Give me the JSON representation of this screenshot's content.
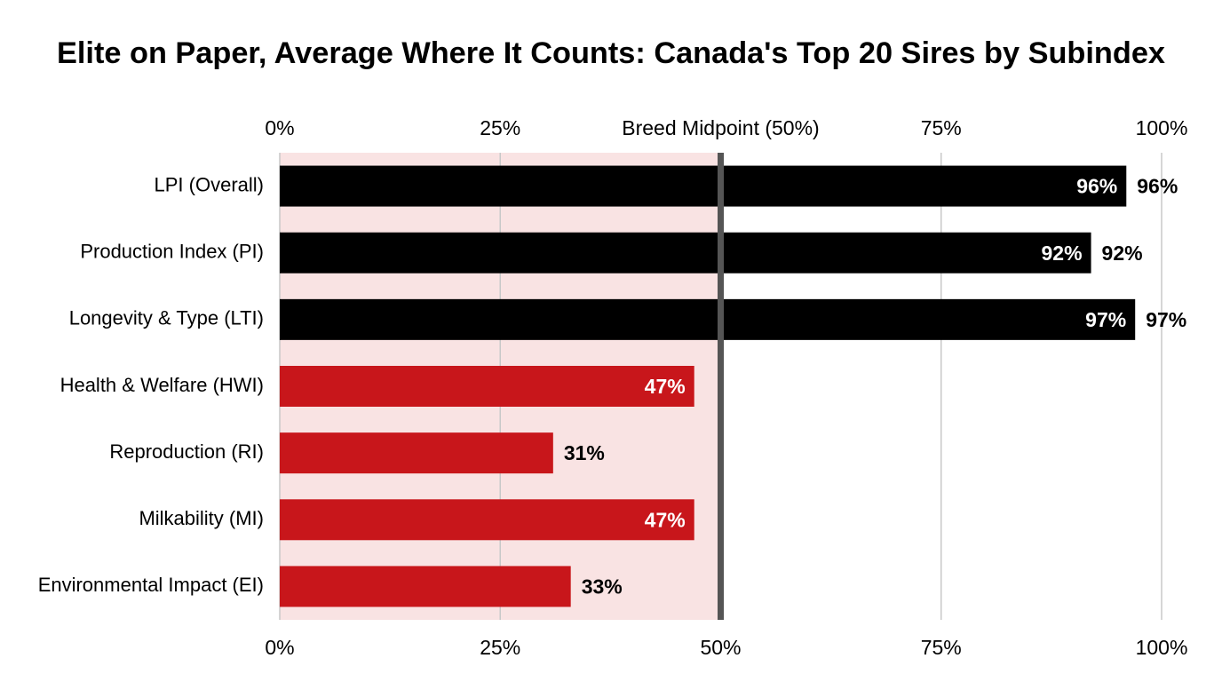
{
  "chart_data": {
    "type": "bar",
    "orientation": "horizontal",
    "title": "Elite on Paper, Average Where It Counts: Canada's Top 20 Sires by Subindex",
    "categories": [
      "LPI (Overall)",
      "Production Index (PI)",
      "Longevity & Type (LTI)",
      "Health & Welfare (HWI)",
      "Reproduction (RI)",
      "Milkability (MI)",
      "Environmental Impact (EI)"
    ],
    "values": [
      96,
      92,
      97,
      47,
      31,
      47,
      33
    ],
    "value_labels": [
      "96%",
      "92%",
      "97%",
      "47%",
      "31%",
      "47%",
      "33%"
    ],
    "colors": [
      "#000000",
      "#000000",
      "#000000",
      "#c8161b",
      "#c8161b",
      "#c8161b",
      "#c8161b"
    ],
    "label_positions": [
      "both",
      "both",
      "both",
      "inside",
      "outside",
      "inside",
      "outside"
    ],
    "xlim": [
      0,
      100
    ],
    "xticks": [
      {
        "value": 0,
        "label": "0%"
      },
      {
        "value": 25,
        "label": "25%"
      },
      {
        "value": 50,
        "label": "50%"
      },
      {
        "value": 75,
        "label": "75%"
      },
      {
        "value": 100,
        "label": "100%"
      }
    ],
    "xticks_top": [
      {
        "value": 0,
        "label": "0%"
      },
      {
        "value": 25,
        "label": "25%"
      },
      {
        "value": 50,
        "label": "Breed Midpoint (50%)"
      },
      {
        "value": 75,
        "label": "75%"
      },
      {
        "value": 100,
        "label": "100%"
      }
    ],
    "grid": true,
    "below_midpoint_shade": "#f9e3e3",
    "midpoint_color": "#555555"
  }
}
